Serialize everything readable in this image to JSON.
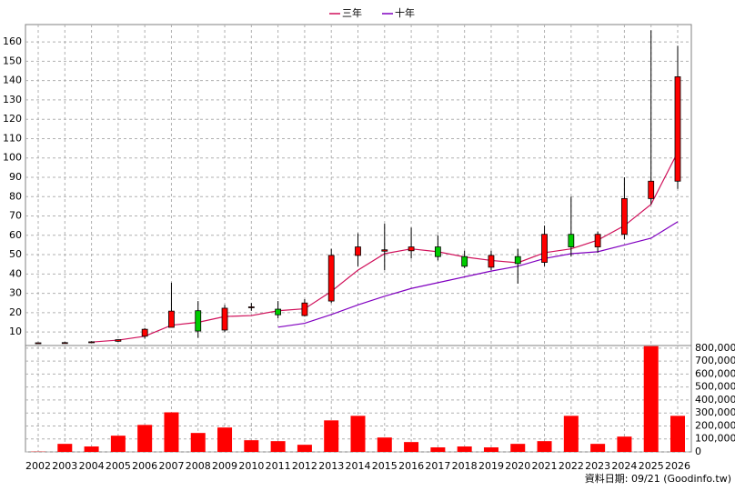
{
  "chart_data": {
    "type": "candlestick",
    "categories": [
      "2002",
      "2003",
      "2004",
      "2005",
      "2006",
      "2007",
      "2008",
      "2009",
      "2010",
      "2011",
      "2012",
      "2013",
      "2014",
      "2015",
      "2016",
      "2017",
      "2018",
      "2019",
      "2020",
      "2021",
      "2022",
      "2023",
      "2024",
      "2025",
      "2026"
    ],
    "open": [
      4.3,
      4.4,
      4.8,
      5.2,
      7.8,
      12.4,
      21,
      11,
      22.6,
      21.8,
      18.5,
      26,
      49.6,
      51.8,
      52,
      54,
      49,
      43.5,
      49,
      46,
      60.5,
      54,
      60.5,
      79,
      88
    ],
    "high": [
      4.6,
      4.8,
      5.2,
      6.2,
      12,
      35.5,
      26,
      24,
      25,
      26,
      27,
      53,
      61,
      66,
      64,
      60,
      52,
      52,
      53,
      65,
      80,
      62,
      90,
      166,
      158
    ],
    "low": [
      4.1,
      4.2,
      4.6,
      4.9,
      6.5,
      13,
      7,
      10,
      21,
      17,
      18,
      25,
      44,
      42,
      48,
      47,
      43,
      42,
      35,
      44,
      49,
      51,
      58,
      76,
      84
    ],
    "close": [
      4.4,
      4.5,
      4.9,
      6,
      11.4,
      20.8,
      10.5,
      22.3,
      23,
      18.9,
      25,
      49.6,
      54,
      52.5,
      54,
      49,
      44,
      49.6,
      45.4,
      60.5,
      54,
      60.5,
      79,
      88,
      142
    ],
    "up_color": "#ff0000",
    "down_color": "#00cc00",
    "ylim": [
      3,
      169
    ],
    "yticks": [
      10,
      20,
      30,
      40,
      50,
      60,
      70,
      80,
      90,
      100,
      110,
      120,
      130,
      140,
      150,
      160
    ],
    "grid": true,
    "series": [
      {
        "name": "三年",
        "color": "#d0105a",
        "values": [
          null,
          null,
          4.8,
          5.8,
          7.8,
          13.5,
          15,
          18,
          18.5,
          21,
          22,
          31,
          42,
          50.5,
          53,
          51.5,
          48.8,
          47,
          45.8,
          51,
          53,
          57.5,
          65,
          76,
          103
        ]
      },
      {
        "name": "十年",
        "color": "#8000c0",
        "values": [
          null,
          null,
          null,
          null,
          null,
          null,
          null,
          null,
          null,
          12.5,
          14.5,
          19,
          24,
          28.5,
          32.5,
          35.5,
          38.5,
          41.5,
          44,
          48,
          50.5,
          51.5,
          55,
          58.5,
          67
        ]
      }
    ],
    "volume": {
      "color": "#ff0000",
      "values": [
        2000,
        62000,
        42000,
        125000,
        208000,
        305000,
        146000,
        188000,
        90000,
        83000,
        55000,
        243000,
        278000,
        111000,
        76000,
        35000,
        42000,
        35000,
        62000,
        83000,
        278000,
        62000,
        118000,
        815000,
        278000
      ],
      "ylim": [
        0,
        820000
      ],
      "yticks": [
        {
          "value": 0,
          "label": "0"
        },
        {
          "value": 100000,
          "label": "100,000"
        },
        {
          "value": 200000,
          "label": "200,000"
        },
        {
          "value": 300000,
          "label": "300,000"
        },
        {
          "value": 400000,
          "label": "400,000"
        },
        {
          "value": 500000,
          "label": "500,000"
        },
        {
          "value": 600000,
          "label": "600,000"
        },
        {
          "value": 700000,
          "label": "700,000"
        },
        {
          "value": 800000,
          "label": "800,000"
        }
      ]
    },
    "footer": "資料日期: 09/21  (Goodinfo.tw)"
  }
}
